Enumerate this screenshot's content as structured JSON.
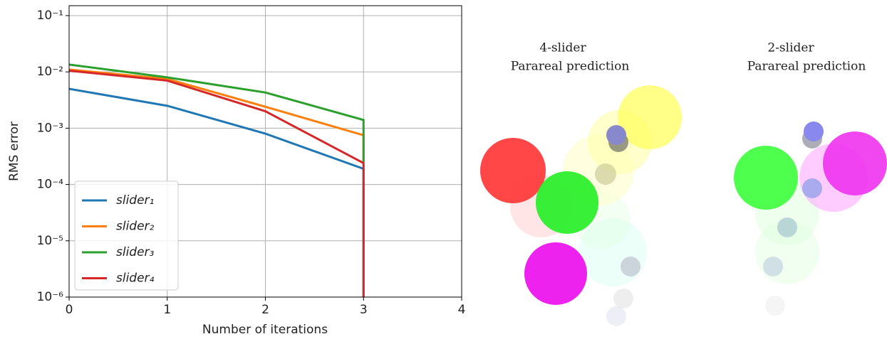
{
  "chart_data": {
    "type": "line",
    "xlabel": "Number of iterations",
    "ylabel": "RMS error",
    "x": [
      0,
      1,
      2,
      3,
      3
    ],
    "series": [
      {
        "name": "slider₁",
        "color": "#1f77b4",
        "values": [
          0.005,
          0.0025,
          0.0008,
          0.00019,
          1e-06
        ]
      },
      {
        "name": "slider₂",
        "color": "#ff7f0e",
        "values": [
          0.011,
          0.0075,
          0.0024,
          0.00075,
          0.00025
        ]
      },
      {
        "name": "slider₃",
        "color": "#2ca02c",
        "values": [
          0.0135,
          0.008,
          0.0043,
          0.0014,
          0.00025
        ]
      },
      {
        "name": "slider₄",
        "color": "#d62728",
        "values": [
          0.0105,
          0.007,
          0.002,
          0.00024,
          1e-06
        ]
      }
    ],
    "xlim": [
      0,
      4
    ],
    "xticks": [
      0,
      1,
      2,
      3,
      4
    ],
    "ylim": [
      1e-06,
      0.15
    ],
    "ylog": true,
    "yticks": [
      {
        "value": 0.1,
        "label": "10⁻¹"
      },
      {
        "value": 0.01,
        "label": "10⁻²"
      },
      {
        "value": 0.001,
        "label": "10⁻³"
      },
      {
        "value": 0.0001,
        "label": "10⁻⁴"
      },
      {
        "value": 1e-05,
        "label": "10⁻⁵"
      },
      {
        "value": 1e-06,
        "label": "10⁻⁶"
      }
    ],
    "grid": true,
    "legend": "lower left"
  },
  "panels": [
    {
      "title": "4-slider",
      "subtitle": "Parareal prediction"
    },
    {
      "title": "2-slider",
      "subtitle": "Parareal prediction"
    }
  ]
}
